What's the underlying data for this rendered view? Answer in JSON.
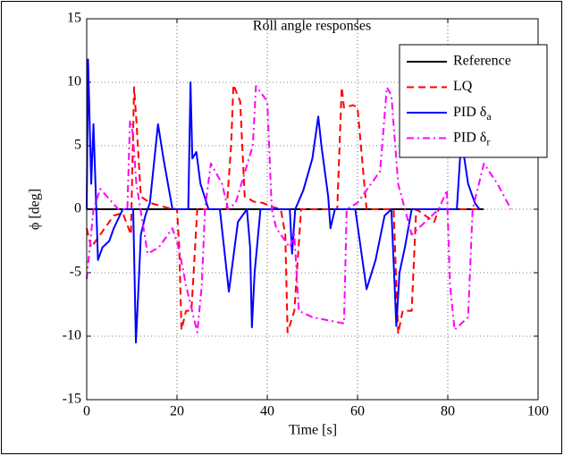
{
  "chart_data": {
    "type": "line",
    "title": "Roll angle responses",
    "x_label": "Time [s]",
    "y_label": "ϕ [deg]",
    "xlim": [
      0,
      100
    ],
    "ylim": [
      -15,
      15
    ],
    "xticks": [
      0,
      20,
      40,
      60,
      80,
      100
    ],
    "yticks": [
      -15,
      -10,
      -5,
      0,
      5,
      10,
      15
    ],
    "grid": true,
    "legend": "upper right",
    "series": [
      {
        "name": "Reference",
        "color": "#000000",
        "line_style": "solid",
        "x": [
          0,
          88
        ],
        "values": [
          0,
          0
        ]
      },
      {
        "name": "LQ",
        "color": "#ff0000",
        "line_style": "dashed",
        "x": [
          0,
          1,
          2,
          4,
          6,
          8,
          9.8,
          10.5,
          11,
          12,
          14,
          16,
          18,
          20,
          20.5,
          21,
          22,
          23.2,
          24.5,
          28,
          31,
          32,
          32.5,
          34,
          35,
          37,
          39,
          41,
          43,
          44,
          44.5,
          46,
          47.5,
          52,
          55.5,
          56.5,
          57,
          59,
          60,
          62,
          66,
          68,
          69,
          70,
          72,
          73,
          75,
          77,
          78,
          88
        ],
        "values": [
          -1.5,
          -3,
          -2.5,
          -1.5,
          -0.5,
          -0.3,
          -2,
          9.6,
          7,
          1,
          0.5,
          0.3,
          0.1,
          0,
          -3,
          -9.5,
          -8,
          -8,
          0,
          0,
          0,
          5,
          9.8,
          8.5,
          1,
          0.6,
          0.5,
          0.2,
          0,
          -2,
          -9.7,
          -8,
          0,
          0,
          0,
          9.6,
          8,
          8.2,
          8,
          0,
          0,
          0,
          -9.8,
          -8,
          -8,
          0,
          -0.5,
          -1,
          0,
          0
        ]
      },
      {
        "name": "PID δa",
        "color": "#0000ff",
        "line_style": "solid",
        "x": [
          0,
          0.3,
          1,
          1.5,
          2.5,
          3.5,
          5,
          6,
          8,
          10.3,
          10.9,
          11.5,
          12,
          13,
          14,
          15.8,
          17,
          19,
          22.5,
          23,
          23.4,
          24.3,
          25.2,
          27,
          29.5,
          31.5,
          33.5,
          35.5,
          36.2,
          36.6,
          37.2,
          38.5,
          45,
          45.5,
          46.2,
          48,
          50,
          51.3,
          52,
          53.5,
          54,
          55,
          59.5,
          62,
          64,
          66,
          67.5,
          68.6,
          69.3,
          70.5,
          72,
          82,
          83,
          84.5,
          86,
          87
        ],
        "values": [
          0,
          11.8,
          2,
          6.7,
          -4,
          -3,
          -2.5,
          -1.5,
          0,
          0,
          -10.5,
          -6,
          -2,
          -0.5,
          0.5,
          6.7,
          4,
          0,
          0,
          10,
          4,
          4.5,
          2,
          0,
          0,
          -6.5,
          -1,
          0,
          -3,
          -9.3,
          -5,
          0,
          0,
          -3.5,
          0,
          1.5,
          4,
          7.3,
          5,
          1,
          -1.5,
          0,
          0,
          -6.3,
          -4,
          -0.5,
          0,
          -9.2,
          -5,
          -3,
          0,
          0,
          5.6,
          2,
          0.5,
          0
        ]
      },
      {
        "name": "PID δr",
        "color": "#ff00ff",
        "line_style": "dashdot",
        "x": [
          0,
          1.5,
          3,
          5,
          7,
          9,
          9.6,
          10.2,
          11,
          13.5,
          16,
          19,
          20.5,
          22,
          24.5,
          25.5,
          26.2,
          27.5,
          30,
          31.3,
          33,
          36.8,
          37.5,
          40,
          41,
          42,
          45,
          46,
          47,
          50,
          57,
          57.6,
          60,
          65,
          66.5,
          67.5,
          69,
          72,
          75,
          78,
          79.8,
          80.5,
          81.5,
          84.5,
          85.5,
          88,
          91,
          94
        ],
        "values": [
          -5.5,
          0,
          1.6,
          0.8,
          0,
          0,
          7,
          6,
          2,
          -3.5,
          -3,
          -1.5,
          -3.2,
          -6,
          -9.7,
          -6,
          0,
          3.6,
          2,
          0,
          0.5,
          5,
          9.7,
          8.5,
          0,
          -1.5,
          -3,
          -2,
          -8,
          -8.5,
          -9,
          0,
          0.5,
          3,
          9.6,
          9,
          2,
          -2,
          -1,
          0,
          1.5,
          -6,
          -9.5,
          -8.5,
          0,
          3.6,
          2,
          0
        ]
      }
    ]
  }
}
